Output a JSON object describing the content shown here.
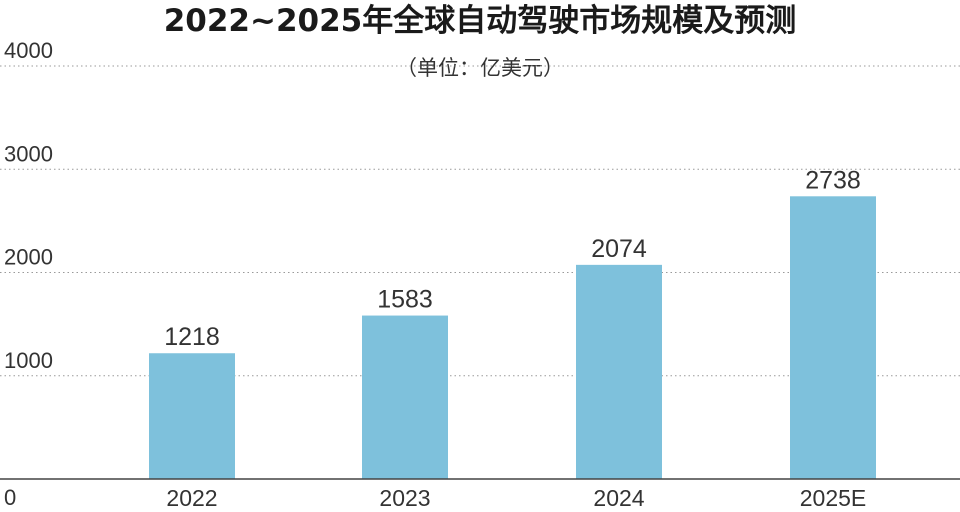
{
  "chart_data": {
    "type": "bar",
    "title": "2022~2025年全球自动驾驶市场规模及预测",
    "subtitle": "（单位：亿美元）",
    "categories": [
      "2022",
      "2023",
      "2024",
      "2025E"
    ],
    "series": [
      {
        "values": [
          1218,
          1583,
          2074,
          2738
        ]
      }
    ],
    "ylim": [
      0,
      4000
    ],
    "yticks": [
      "0",
      "1000",
      "2000",
      "3000",
      "4000"
    ],
    "grid": true,
    "bar_color": "#7ec1dc"
  }
}
